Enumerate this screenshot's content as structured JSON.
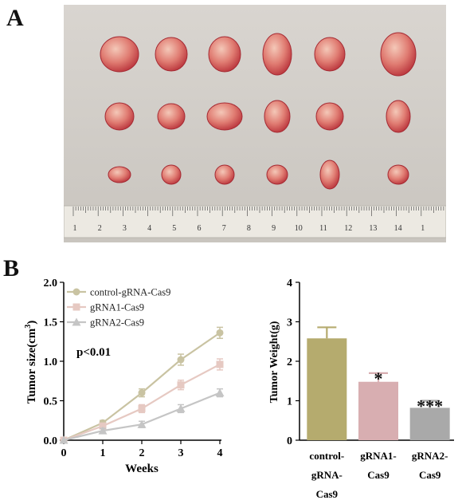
{
  "panels": {
    "a": "A",
    "b": "B"
  },
  "photo": {
    "description_label": "tumor specimens on ruler",
    "ruler_numbers": [
      "1",
      "2",
      "3",
      "4",
      "5",
      "6",
      "7",
      "8",
      "9",
      "10",
      "11",
      "12",
      "13",
      "14",
      "1"
    ]
  },
  "colors": {
    "control": "#b5ab6e",
    "gRNA1": "#d8aeb1",
    "gRNA2": "#a9a9a9",
    "line_control": "#c9c3a2",
    "line_gRNA1": "#e6c9c2",
    "line_gRNA2": "#c5c5c5"
  },
  "chart_data": [
    {
      "type": "line",
      "xlabel": "Weeks",
      "ylabel": "Tumor size(cm³)",
      "ylabel_base": "Tumor size(cm",
      "ylabel_sup": "3",
      "ylabel_tail": ")",
      "x": [
        0,
        1,
        2,
        3,
        4
      ],
      "xlim": [
        0,
        4
      ],
      "ylim": [
        0,
        2.0
      ],
      "xticks": [
        "0",
        "1",
        "2",
        "3",
        "4"
      ],
      "yticks": [
        "0.0",
        "0.5",
        "1.0",
        "1.5",
        "2.0"
      ],
      "annotation": "p<0.01",
      "legend_position": "top-left",
      "series": [
        {
          "name": "control-gRNA-Cas9",
          "marker": "circle",
          "values": [
            0.0,
            0.22,
            0.6,
            1.02,
            1.36
          ],
          "errors": [
            0,
            0.03,
            0.05,
            0.07,
            0.07
          ]
        },
        {
          "name": "gRNA1-Cas9",
          "marker": "square",
          "values": [
            0.0,
            0.18,
            0.4,
            0.7,
            0.96
          ],
          "errors": [
            0,
            0.03,
            0.05,
            0.06,
            0.07
          ]
        },
        {
          "name": "gRNA2-Cas9",
          "marker": "triangle",
          "values": [
            0.0,
            0.12,
            0.2,
            0.4,
            0.6
          ],
          "errors": [
            0,
            0.03,
            0.04,
            0.05,
            0.05
          ]
        }
      ]
    },
    {
      "type": "bar",
      "ylabel": "Tumor Weight(g)",
      "categories": [
        "control-gRNA-Cas9",
        "gRNA1-Cas9",
        "gRNA2-Cas9"
      ],
      "category_lines": [
        [
          "control-",
          "gRNA-",
          "Cas9"
        ],
        [
          "gRNA1-",
          "Cas9"
        ],
        [
          "gRNA2-",
          "Cas9"
        ]
      ],
      "values": [
        2.58,
        1.48,
        0.82
      ],
      "errors": [
        0.28,
        0.22,
        0.18
      ],
      "significance": [
        "",
        "*",
        "***"
      ],
      "ylim": [
        0,
        4
      ],
      "yticks": [
        "0",
        "1",
        "2",
        "3",
        "4"
      ]
    }
  ]
}
